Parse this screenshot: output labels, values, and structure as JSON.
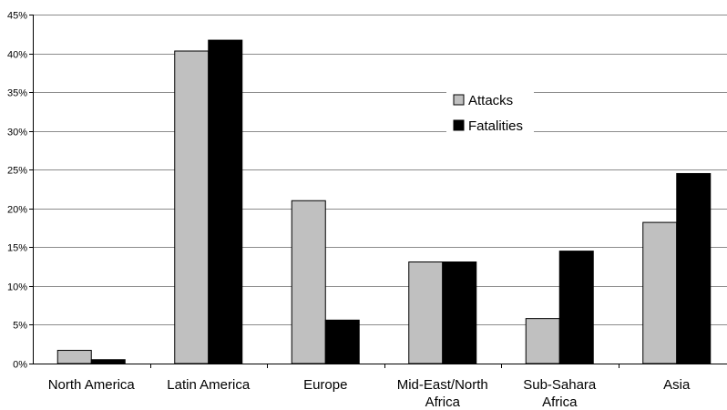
{
  "chart_data": {
    "type": "bar",
    "title": "",
    "xlabel": "",
    "ylabel": "",
    "ylim": [
      0,
      45
    ],
    "yticks": [
      "0%",
      "5%",
      "10%",
      "15%",
      "20%",
      "25%",
      "30%",
      "35%",
      "40%",
      "45%"
    ],
    "grid": true,
    "legend_position": "upper-right-inside",
    "categories": [
      [
        "North America"
      ],
      [
        "Latin America"
      ],
      [
        "Europe"
      ],
      [
        "Mid-East/North",
        "Africa"
      ],
      [
        "Sub-Sahara",
        "Africa"
      ],
      [
        "Asia"
      ]
    ],
    "series": [
      {
        "name": "Attacks",
        "color": "#c0c0c0",
        "values": [
          1.7,
          40.3,
          21.0,
          13.1,
          5.8,
          18.2
        ]
      },
      {
        "name": "Fatalities",
        "color": "#000000",
        "values": [
          0.5,
          41.7,
          5.6,
          13.1,
          14.5,
          24.5
        ]
      }
    ]
  }
}
